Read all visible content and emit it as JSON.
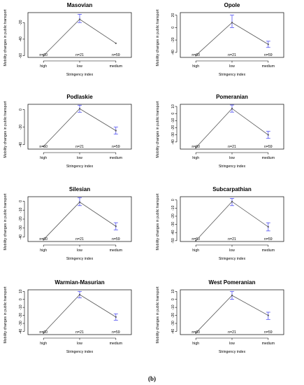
{
  "figure": {
    "caption": "(b)"
  },
  "chart_data": [
    {
      "type": "line",
      "title": "Masovian",
      "xlabel": "Stringency index",
      "ylabel": "Mobility changes in public transport",
      "categories": [
        "high",
        "low",
        "medium"
      ],
      "counts": [
        "n=60",
        "n=21",
        "n=59"
      ],
      "values": [
        -60,
        -16,
        -45
      ],
      "error": [
        [
          -60,
          -60
        ],
        [
          -20,
          -10
        ],
        [
          -45,
          -45
        ]
      ],
      "ylim": [
        -62,
        -8
      ],
      "yticks": [
        -60,
        -40,
        -20
      ]
    },
    {
      "type": "line",
      "title": "Opole",
      "xlabel": "Stringency index",
      "ylabel": "Mobility changes in public transport",
      "categories": [
        "high",
        "low",
        "medium"
      ],
      "counts": [
        "n=60",
        "n=21",
        "n=59"
      ],
      "values": [
        -45,
        8,
        -27
      ],
      "error": [
        [
          -45,
          -45
        ],
        [
          0,
          20
        ],
        [
          -32,
          -22
        ]
      ],
      "ylim": [
        -48,
        24
      ],
      "yticks": [
        -40,
        -20,
        0,
        20
      ]
    },
    {
      "type": "line",
      "title": "Podlaskie",
      "xlabel": "Stringency index",
      "ylabel": "Mobility changes in public transport",
      "categories": [
        "high",
        "low",
        "medium"
      ],
      "counts": [
        "n=60",
        "n=21",
        "n=59"
      ],
      "values": [
        -42,
        1,
        -24
      ],
      "error": [
        [
          -42,
          -42
        ],
        [
          -3,
          5
        ],
        [
          -28,
          -20
        ]
      ],
      "ylim": [
        -45,
        6
      ],
      "yticks": [
        -40,
        -20,
        0
      ]
    },
    {
      "type": "line",
      "title": "Pomeranian",
      "xlabel": "Stringency index",
      "ylabel": "Mobility changes in public transport",
      "categories": [
        "high",
        "low",
        "medium"
      ],
      "counts": [
        "n=60",
        "n=21",
        "n=59"
      ],
      "values": [
        -48,
        7,
        -30
      ],
      "error": [
        [
          -48,
          -48
        ],
        [
          2,
          12
        ],
        [
          -35,
          -25
        ]
      ],
      "ylim": [
        -50,
        13
      ],
      "yticks": [
        -40,
        -30,
        -20,
        -10,
        0,
        10
      ]
    },
    {
      "type": "line",
      "title": "Silesian",
      "xlabel": "Stringency index",
      "ylabel": "Mobility changes in public transport",
      "categories": [
        "high",
        "low",
        "medium"
      ],
      "counts": [
        "n=60",
        "n=21",
        "n=59"
      ],
      "values": [
        -43,
        -1,
        -28
      ],
      "error": [
        [
          -43,
          -43
        ],
        [
          -5,
          4
        ],
        [
          -32,
          -24
        ]
      ],
      "ylim": [
        -45,
        5
      ],
      "yticks": [
        -40,
        -30,
        -20,
        -10,
        0
      ]
    },
    {
      "type": "line",
      "title": "Subcarpathian",
      "xlabel": "Stringency index",
      "ylabel": "Mobility changes in public transport",
      "categories": [
        "high",
        "low",
        "medium"
      ],
      "counts": [
        "n=60",
        "n=21",
        "n=59"
      ],
      "values": [
        -50,
        -2,
        -33
      ],
      "error": [
        [
          -50,
          -50
        ],
        [
          -7,
          2
        ],
        [
          -38,
          -28
        ]
      ],
      "ylim": [
        -51,
        4
      ],
      "yticks": [
        -50,
        -40,
        -30,
        -20,
        -10,
        0
      ]
    },
    {
      "type": "line",
      "title": "Warmian-Masurian",
      "xlabel": "Stringency index",
      "ylabel": "Mobility changes in public transport",
      "categories": [
        "high",
        "low",
        "medium"
      ],
      "counts": [
        "n=60",
        "n=21",
        "n=59"
      ],
      "values": [
        -42,
        6,
        -22
      ],
      "error": [
        [
          -42,
          -42
        ],
        [
          2,
          10
        ],
        [
          -26,
          -18
        ]
      ],
      "ylim": [
        -44,
        12
      ],
      "yticks": [
        -40,
        -30,
        -20,
        -10,
        0,
        10
      ]
    },
    {
      "type": "line",
      "title": "West Pomeranian",
      "xlabel": "Stringency index",
      "ylabel": "Mobility changes in public transport",
      "categories": [
        "high",
        "low",
        "medium"
      ],
      "counts": [
        "n=60",
        "n=21",
        "n=59"
      ],
      "values": [
        -42,
        5,
        -20
      ],
      "error": [
        [
          -42,
          -42
        ],
        [
          0,
          10
        ],
        [
          -25,
          -16
        ]
      ],
      "ylim": [
        -44,
        12
      ],
      "yticks": [
        -40,
        -30,
        -20,
        -10,
        0,
        10
      ]
    }
  ],
  "colors": {
    "line": "#555555",
    "errorbar": "#3a3af0",
    "axis": "#000000"
  }
}
